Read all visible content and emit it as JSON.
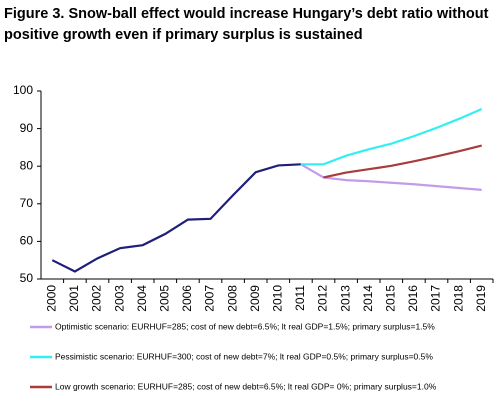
{
  "chart_data": {
    "type": "line",
    "title": [
      "Figure 3. Snow-ball effect would increase Hungary’s debt ratio without",
      "positive growth even if primary surplus is sustained"
    ],
    "categories": [
      "2000",
      "2001",
      "2002",
      "2003",
      "2004",
      "2005",
      "2006",
      "2007",
      "2008",
      "2009",
      "2010",
      "2011",
      "2012",
      "2013",
      "2014",
      "2015",
      "2016",
      "2017",
      "2018",
      "2019"
    ],
    "series": [
      {
        "color": "#1f1f7a",
        "values": [
          55,
          52,
          55.5,
          58.2,
          59,
          62,
          65.8,
          66,
          72.3,
          78.4,
          80.2,
          80.5,
          null,
          null,
          null,
          null,
          null,
          null,
          null,
          null
        ]
      },
      {
        "name": "Optimistic scenario: EURHUF=285; cost of new debt=6.5%; lt real GDP=1.5%; primary surplus=1.5%",
        "color": "#c49be8",
        "values": [
          null,
          null,
          null,
          null,
          null,
          null,
          null,
          null,
          null,
          null,
          null,
          80.5,
          77,
          76.3,
          76,
          75.6,
          75.2,
          74.7,
          74.2,
          73.7
        ]
      },
      {
        "name": "Pessimistic scenario: EURHUF=300; cost of new debt=7%; lt real GDP=0.5%; primary surplus=0.5%",
        "color": "#33f0f0",
        "values": [
          null,
          null,
          null,
          null,
          null,
          null,
          null,
          null,
          null,
          null,
          null,
          80.5,
          80.5,
          82.8,
          84.5,
          86,
          88,
          90.2,
          92.6,
          95.2
        ]
      },
      {
        "name": "Low growth scenario: EURHUF=285; cost of new debt=6.5%; lt real GDP= 0%; primary surplus=1.0%",
        "color": "#a83c3c",
        "values": [
          null,
          null,
          null,
          null,
          null,
          null,
          null,
          null,
          null,
          null,
          null,
          null,
          77,
          78.3,
          79.2,
          80.1,
          81.3,
          82.6,
          84,
          85.5
        ]
      }
    ],
    "ylim": [
      50,
      100
    ],
    "yticks": [
      50,
      60,
      70,
      80,
      90,
      100
    ],
    "grid": false
  }
}
